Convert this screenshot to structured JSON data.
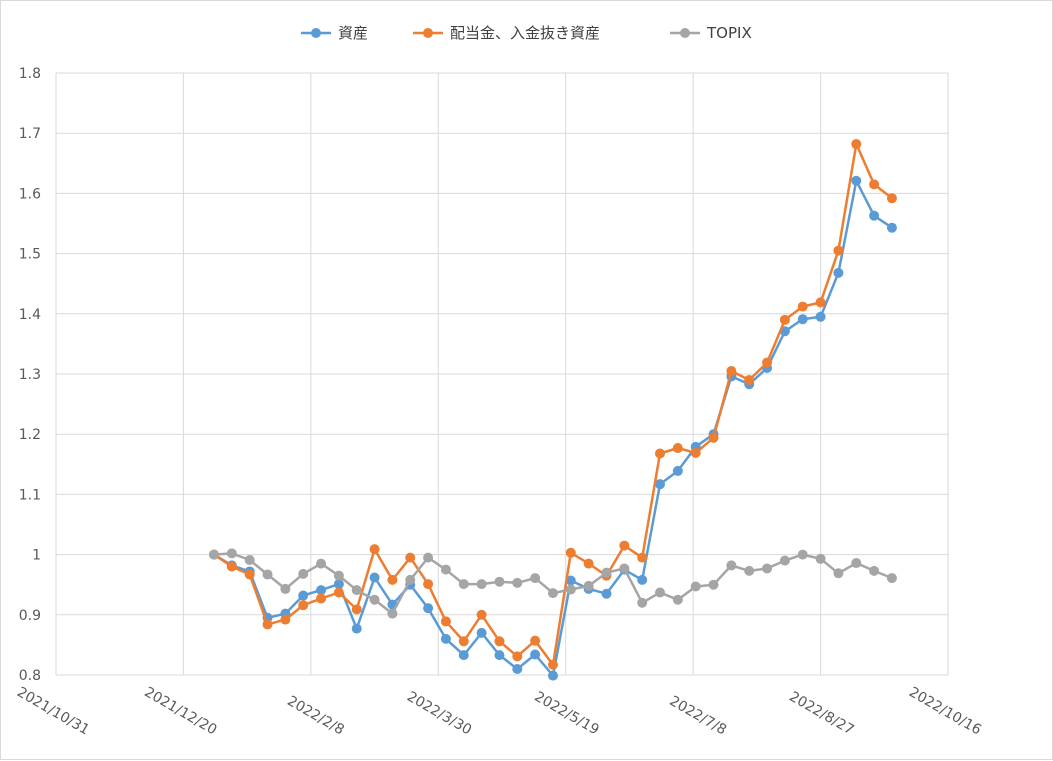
{
  "chart_data": {
    "type": "line",
    "title": "",
    "xlabel": "",
    "ylabel": "",
    "x_axis": {
      "type": "date",
      "ticks": [
        "2021/10/31",
        "2021/12/20",
        "2022/2/8",
        "2022/3/30",
        "2022/5/19",
        "2022/7/8",
        "2022/8/27",
        "2022/10/16"
      ],
      "range": [
        "2021/10/31",
        "2022/10/16"
      ]
    },
    "y_axis": {
      "range": [
        0.8,
        1.8
      ],
      "ticks": [
        "0.8",
        "0.9",
        "1",
        "1.1",
        "1.2",
        "1.3",
        "1.4",
        "1.5",
        "1.6",
        "1.7",
        "1.8"
      ]
    },
    "grid": {
      "horizontal": true,
      "vertical": true
    },
    "legend": "top",
    "x": [
      "2022/1/1",
      "2022/1/8",
      "2022/1/15",
      "2022/1/22",
      "2022/1/29",
      "2022/2/5",
      "2022/2/12",
      "2022/2/19",
      "2022/2/26",
      "2022/3/5",
      "2022/3/12",
      "2022/3/19",
      "2022/3/26",
      "2022/4/2",
      "2022/4/9",
      "2022/4/16",
      "2022/4/23",
      "2022/4/30",
      "2022/5/7",
      "2022/5/14",
      "2022/5/21",
      "2022/5/28",
      "2022/6/4",
      "2022/6/11",
      "2022/6/18",
      "2022/6/25",
      "2022/7/2",
      "2022/7/9",
      "2022/7/16",
      "2022/7/23",
      "2022/7/30",
      "2022/8/6",
      "2022/8/13",
      "2022/8/20",
      "2022/8/27",
      "2022/9/3",
      "2022/9/10",
      "2022/9/17",
      "2022/9/24"
    ],
    "series": [
      {
        "name": "資産",
        "color": "#5b9bd5",
        "values": [
          1.0,
          0.982,
          0.972,
          0.895,
          0.902,
          0.932,
          0.941,
          0.951,
          0.877,
          0.962,
          0.917,
          0.95,
          0.911,
          0.86,
          0.833,
          0.87,
          0.833,
          0.81,
          0.834,
          0.799,
          0.957,
          0.943,
          0.935,
          0.975,
          0.958,
          1.117,
          1.139,
          1.179,
          1.2,
          1.296,
          1.283,
          1.31,
          1.371,
          1.391,
          1.395,
          1.468,
          1.621,
          1.563,
          1.543
        ]
      },
      {
        "name": "配当金、入金抜き資産",
        "color": "#ed7d31",
        "values": [
          1.0,
          0.98,
          0.967,
          0.884,
          0.892,
          0.916,
          0.927,
          0.937,
          0.909,
          1.009,
          0.958,
          0.995,
          0.951,
          0.889,
          0.856,
          0.9,
          0.856,
          0.831,
          0.857,
          0.817,
          1.003,
          0.985,
          0.965,
          1.015,
          0.995,
          1.168,
          1.177,
          1.169,
          1.194,
          1.305,
          1.29,
          1.319,
          1.39,
          1.412,
          1.419,
          1.505,
          1.682,
          1.615,
          1.592
        ]
      },
      {
        "name": "TOPIX",
        "color": "#a5a5a5",
        "values": [
          1.0,
          1.002,
          0.991,
          0.967,
          0.943,
          0.968,
          0.985,
          0.965,
          0.941,
          0.925,
          0.902,
          0.958,
          0.995,
          0.975,
          0.951,
          0.951,
          0.955,
          0.953,
          0.961,
          0.936,
          0.942,
          0.948,
          0.97,
          0.977,
          0.92,
          0.937,
          0.925,
          0.947,
          0.95,
          0.982,
          0.973,
          0.977,
          0.99,
          1.0,
          0.993,
          0.969,
          0.986,
          0.973,
          0.961
        ]
      }
    ]
  }
}
